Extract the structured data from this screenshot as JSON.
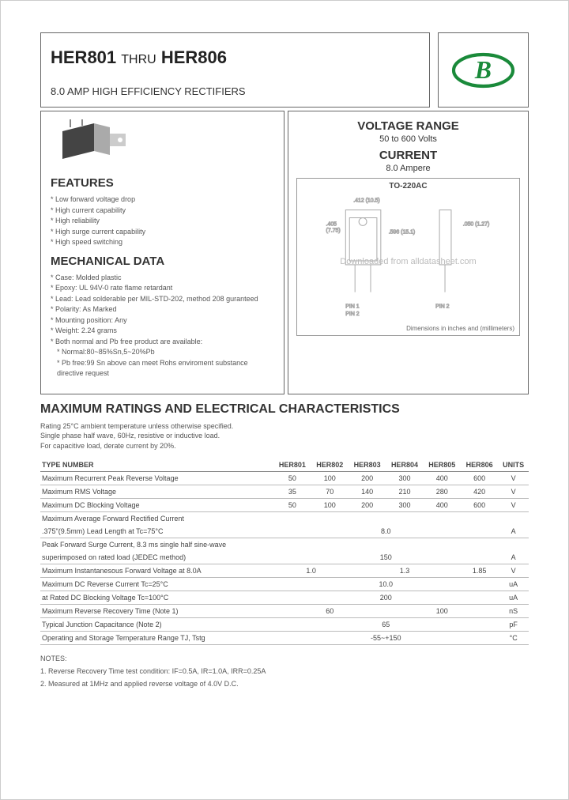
{
  "header": {
    "title_from": "HER801",
    "title_thru": "THRU",
    "title_to": "HER806",
    "subtitle": "8.0 AMP HIGH EFFICIENCY RECTIFIERS"
  },
  "features": {
    "heading": "FEATURES",
    "items": [
      "Low forward voltage drop",
      "High current capability",
      "High reliability",
      "High surge current capability",
      "High speed switching"
    ]
  },
  "mechanical": {
    "heading": "MECHANICAL DATA",
    "items": [
      "Case: Molded plastic",
      "Epoxy: UL 94V-0 rate flame retardant",
      "Lead: Lead solderable per MIL-STD-202, method 208 guranteed",
      "Polarity: As Marked",
      "Mounting position: Any",
      "Weight: 2.24 grams",
      "Both normal and Pb free product are available:",
      "Normal:80~85%Sn,5~20%Pb",
      "Pb free:99 Sn above can meet Rohs enviroment substance directive request"
    ]
  },
  "voltage": {
    "heading1": "VOLTAGE RANGE",
    "val1": "50 to 600 Volts",
    "heading2": "CURRENT",
    "val2": "8.0 Ampere",
    "pkg_label": "TO-220AC",
    "watermark": "Downloaded from alldatasheet.com",
    "dim_note": "Dimensions in inches and (millimeters)"
  },
  "ratings": {
    "heading": "MAXIMUM RATINGS AND ELECTRICAL CHARACTERISTICS",
    "intro": "Rating 25°C ambient temperature unless otherwise specified.\nSingle phase half wave, 60Hz, resistive or inductive load.\nFor capacitive load, derate current by 20%.",
    "type_label": "TYPE NUMBER",
    "columns": [
      "HER801",
      "HER802",
      "HER803",
      "HER804",
      "HER805",
      "HER806",
      "UNITS"
    ],
    "rows": [
      {
        "label": "Maximum Recurrent Peak Reverse Voltage",
        "cells": [
          "50",
          "100",
          "200",
          "300",
          "400",
          "600",
          "V"
        ]
      },
      {
        "label": "Maximum RMS Voltage",
        "cells": [
          "35",
          "70",
          "140",
          "210",
          "280",
          "420",
          "V"
        ]
      },
      {
        "label": "Maximum DC Blocking Voltage",
        "cells": [
          "50",
          "100",
          "200",
          "300",
          "400",
          "600",
          "V"
        ]
      },
      {
        "label": "Maximum Average Forward Rectified Current",
        "cells": [
          "",
          "",
          "",
          "",
          "",
          "",
          ""
        ],
        "noborder": true
      },
      {
        "label": ".375\"(9.5mm) Lead Length at Tc=75°C",
        "span": "8.0",
        "unit": "A"
      },
      {
        "label": "Peak Forward Surge Current, 8.3 ms single half sine-wave",
        "cells": [
          "",
          "",
          "",
          "",
          "",
          "",
          ""
        ],
        "noborder": true
      },
      {
        "label": "superimposed on rated load (JEDEC method)",
        "span": "150",
        "unit": "A"
      },
      {
        "label": "Maximum Instantanesous Forward Voltage at 8.0A",
        "cells": [
          "",
          "1.0",
          "",
          "",
          "1.3",
          "1.85",
          "V"
        ],
        "groups": [
          [
            0,
            2
          ],
          [
            3,
            4
          ]
        ]
      },
      {
        "label": "Maximum DC Reverse Current          Tc=25°C",
        "span": "10.0",
        "unit": "uA"
      },
      {
        "label": "at Rated DC Blocking Voltage          Tc=100°C",
        "span": "200",
        "unit": "uA"
      },
      {
        "label": "Maximum Reverse Recovery Time (Note 1)",
        "cells": [
          "",
          "",
          "60",
          "",
          "",
          "100",
          "nS"
        ],
        "groups": [
          [
            0,
            4
          ]
        ]
      },
      {
        "label": "Typical Junction Capacitance (Note 2)",
        "span": "65",
        "unit": "pF"
      },
      {
        "label": "Operating and Storage Temperature Range TJ, Tstg",
        "span": "-55~+150",
        "unit": "°C"
      }
    ]
  },
  "notes": {
    "heading": "NOTES:",
    "items": [
      "1. Reverse Recovery Time test condition: IF=0.5A, IR=1.0A, IRR=0.25A",
      "2. Measured at 1MHz and applied reverse voltage of 4.0V D.C."
    ]
  }
}
